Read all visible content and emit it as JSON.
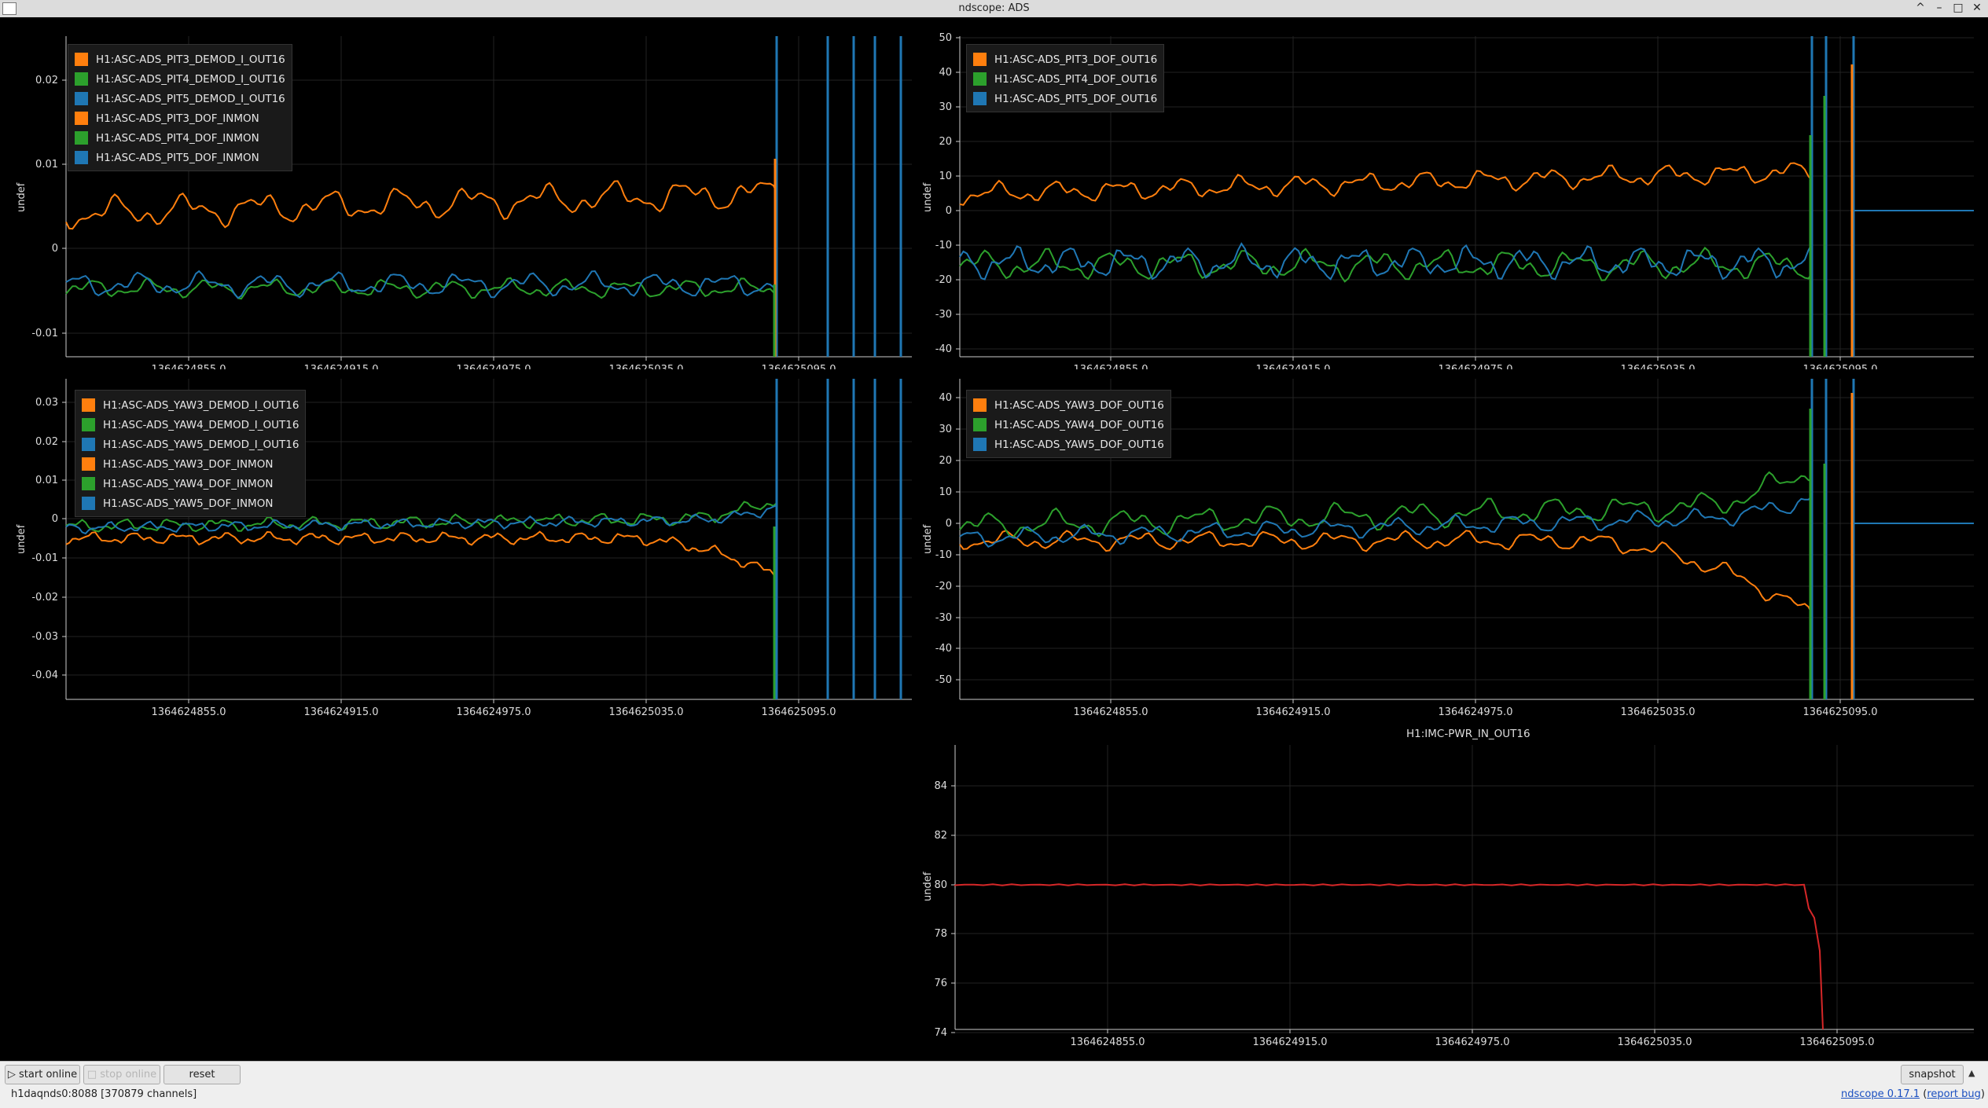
{
  "window": {
    "title": "ndscope: ADS",
    "controls": [
      "^",
      "–",
      "□",
      "✕"
    ]
  },
  "colors": {
    "orange": "#ff7f0e",
    "green": "#2ca02c",
    "blue": "#1f77b4",
    "red": "#d62728",
    "grid": "#222222",
    "axis": "#cccccc"
  },
  "x_ticks": [
    "1364624855.0",
    "1364624915.0",
    "1364624975.0",
    "1364625035.0",
    "1364625095.0"
  ],
  "plots": {
    "pit_demod": {
      "ylabel": "undef",
      "y_ticks": [
        "0.02",
        "0.01",
        "0",
        "-0.01"
      ],
      "legend": [
        {
          "label": "H1:ASC-ADS_PIT3_DEMOD_I_OUT16",
          "color": "orange"
        },
        {
          "label": "H1:ASC-ADS_PIT4_DEMOD_I_OUT16",
          "color": "green"
        },
        {
          "label": "H1:ASC-ADS_PIT5_DEMOD_I_OUT16",
          "color": "blue"
        },
        {
          "label": "H1:ASC-ADS_PIT3_DOF_INMON",
          "color": "orange"
        },
        {
          "label": "H1:ASC-ADS_PIT4_DOF_INMON",
          "color": "green"
        },
        {
          "label": "H1:ASC-ADS_PIT5_DOF_INMON",
          "color": "blue"
        }
      ]
    },
    "pit_dof": {
      "ylabel": "undef",
      "y_ticks": [
        "50",
        "40",
        "30",
        "20",
        "10",
        "0",
        "-10",
        "-20",
        "-30",
        "-40"
      ],
      "legend": [
        {
          "label": "H1:ASC-ADS_PIT3_DOF_OUT16",
          "color": "orange"
        },
        {
          "label": "H1:ASC-ADS_PIT4_DOF_OUT16",
          "color": "green"
        },
        {
          "label": "H1:ASC-ADS_PIT5_DOF_OUT16",
          "color": "blue"
        }
      ]
    },
    "yaw_demod": {
      "ylabel": "undef",
      "y_ticks": [
        "0.03",
        "0.02",
        "0.01",
        "0",
        "-0.01",
        "-0.02",
        "-0.03",
        "-0.04"
      ],
      "legend": [
        {
          "label": "H1:ASC-ADS_YAW3_DEMOD_I_OUT16",
          "color": "orange"
        },
        {
          "label": "H1:ASC-ADS_YAW4_DEMOD_I_OUT16",
          "color": "green"
        },
        {
          "label": "H1:ASC-ADS_YAW5_DEMOD_I_OUT16",
          "color": "blue"
        },
        {
          "label": "H1:ASC-ADS_YAW3_DOF_INMON",
          "color": "orange"
        },
        {
          "label": "H1:ASC-ADS_YAW4_DOF_INMON",
          "color": "green"
        },
        {
          "label": "H1:ASC-ADS_YAW5_DOF_INMON",
          "color": "blue"
        }
      ]
    },
    "yaw_dof": {
      "ylabel": "undef",
      "y_ticks": [
        "40",
        "30",
        "20",
        "10",
        "0",
        "-10",
        "-20",
        "-30",
        "-40",
        "-50"
      ],
      "legend": [
        {
          "label": "H1:ASC-ADS_YAW3_DOF_OUT16",
          "color": "orange"
        },
        {
          "label": "H1:ASC-ADS_YAW4_DOF_OUT16",
          "color": "green"
        },
        {
          "label": "H1:ASC-ADS_YAW5_DOF_OUT16",
          "color": "blue"
        }
      ]
    },
    "imc": {
      "title": "H1:IMC-PWR_IN_OUT16",
      "ylabel": "undef",
      "y_ticks": [
        "84",
        "82",
        "80",
        "78",
        "76",
        "74"
      ]
    }
  },
  "toolbar": {
    "start_online": "start online",
    "stop_online": "stop online",
    "reset": "reset",
    "snapshot": "snapshot",
    "expand": "▲"
  },
  "status": {
    "server": "h1daqnds0:8088  [370879 channels]",
    "version_link": "ndscope 0.17.1",
    "report_open": "(",
    "report_link": "report bug",
    "report_close": ")"
  }
}
